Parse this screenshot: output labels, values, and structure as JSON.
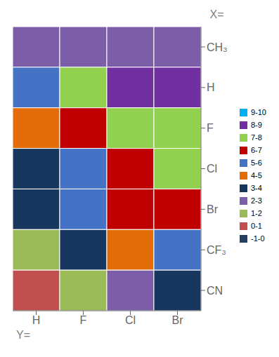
{
  "chart_data": {
    "type": "heatmap",
    "x_categories": [
      "H",
      "F",
      "Cl",
      "Br"
    ],
    "y_categories": [
      "CH₃",
      "H",
      "F",
      "Cl",
      "Br",
      "CF₃",
      "CN"
    ],
    "values": [
      [
        2.1,
        2.5,
        2.7,
        2.8
      ],
      [
        5.2,
        7.4,
        8.1,
        8.4
      ],
      [
        4.0,
        6.5,
        7.4,
        7.7
      ],
      [
        3.7,
        5.6,
        6.7,
        7.0
      ],
      [
        3.5,
        5.3,
        6.3,
        6.7
      ],
      [
        1.4,
        3.3,
        4.6,
        5.0
      ],
      [
        0.4,
        1.6,
        2.7,
        3.0
      ]
    ],
    "xlabel": "Y=",
    "ylabel": "X=",
    "color_bands": [
      {
        "label": "9-10",
        "range": [
          9,
          10
        ],
        "color": "#00b0f0"
      },
      {
        "label": "8-9",
        "range": [
          8,
          9
        ],
        "color": "#7030a0"
      },
      {
        "label": "7-8",
        "range": [
          7,
          8
        ],
        "color": "#92d050"
      },
      {
        "label": "6-7",
        "range": [
          6,
          7
        ],
        "color": "#c00000"
      },
      {
        "label": "5-6",
        "range": [
          5,
          6
        ],
        "color": "#4472c4"
      },
      {
        "label": "4-5",
        "range": [
          4,
          5
        ],
        "color": "#e36c09"
      },
      {
        "label": "3-4",
        "range": [
          3,
          4
        ],
        "color": "#17375e"
      },
      {
        "label": "2-3",
        "range": [
          2,
          3
        ],
        "color": "#7b5ea7"
      },
      {
        "label": "1-2",
        "range": [
          1,
          2
        ],
        "color": "#9bbb59"
      },
      {
        "label": "0-1",
        "range": [
          0,
          1
        ],
        "color": "#c0504d"
      },
      {
        "label": "-1-0",
        "range": [
          -1,
          0
        ],
        "color": "#243f60"
      }
    ],
    "legend": "right"
  }
}
